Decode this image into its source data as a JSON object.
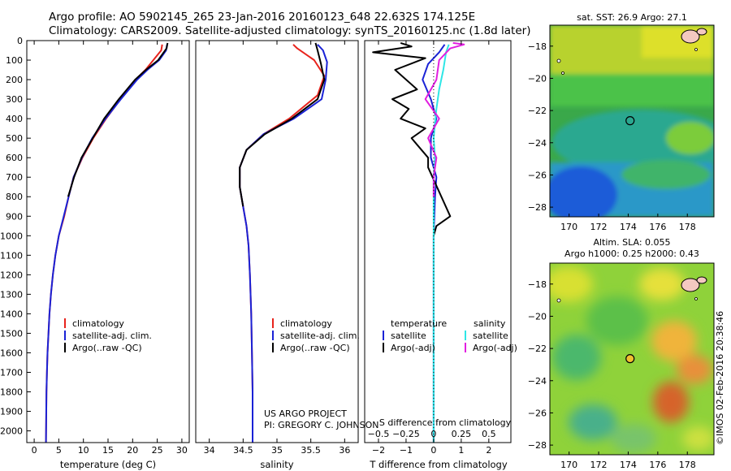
{
  "header": {
    "line1": "Argo profile: AO 5902145_265 23-Jan-2016 20160123_648 22.632S 174.125E",
    "line2": "Climatology: CARS2009. Satellite-adjusted climatology: synTS_20160125.nc (1.8d later)"
  },
  "credit": "©IMOS 02-Feb-2016 20:38:46",
  "project": {
    "line1": "US ARGO PROJECT",
    "line2": "PI: GREGORY C. JOHNSON"
  },
  "colors": {
    "climatology": "#e8231c",
    "satellite": "#1a22d6",
    "argo": "#000000",
    "sat_salinity": "#2ee6e6",
    "argo_salinity": "#e21ee0"
  },
  "chart_data": [
    {
      "type": "line",
      "id": "temperature",
      "xlabel": "temperature (deg C)",
      "xlim": [
        -1.5,
        31.5
      ],
      "xticks": [
        0,
        5,
        10,
        15,
        20,
        25,
        30
      ],
      "ylim": [
        2060,
        0
      ],
      "yticks": [
        0,
        100,
        200,
        300,
        400,
        500,
        600,
        700,
        800,
        900,
        1000,
        1100,
        1200,
        1300,
        1400,
        1500,
        1600,
        1700,
        1800,
        1900,
        2000
      ],
      "legend": [
        "climatology",
        "satellite-adj. clim.",
        "Argo(..raw -QC)"
      ],
      "series": [
        {
          "name": "climatology",
          "x": [
            26.0,
            25.8,
            24.2,
            22.6,
            20.6,
            17.5,
            14.6,
            12.0,
            9.8,
            8.0,
            7.0,
            6.1,
            5.0,
            4.3,
            3.8,
            3.4,
            3.1,
            2.9,
            2.7,
            2.6,
            2.5,
            2.4
          ],
          "y": [
            20,
            50,
            100,
            150,
            200,
            300,
            400,
            500,
            600,
            700,
            800,
            900,
            1000,
            1100,
            1200,
            1300,
            1400,
            1500,
            1600,
            1700,
            1800,
            2060
          ]
        },
        {
          "name": "satellite-adj. clim.",
          "x": [
            27.0,
            26.8,
            25.4,
            23.0,
            20.9,
            17.6,
            14.5,
            11.8,
            9.7,
            8.0,
            7.0,
            6.0,
            5.0,
            4.3,
            3.8,
            3.4,
            3.1,
            2.9,
            2.7,
            2.6,
            2.5,
            2.4
          ],
          "y": [
            20,
            50,
            100,
            150,
            200,
            300,
            400,
            500,
            600,
            700,
            800,
            900,
            1000,
            1100,
            1200,
            1300,
            1400,
            1500,
            1600,
            1700,
            1800,
            2060
          ]
        },
        {
          "name": "Argo(..raw -QC)",
          "x": [
            27.1,
            26.9,
            25.2,
            22.7,
            20.5,
            17.2,
            14.2,
            11.9,
            9.6,
            8.1,
            6.9
          ],
          "y": [
            12,
            40,
            100,
            150,
            200,
            300,
            400,
            500,
            600,
            700,
            800
          ]
        }
      ]
    },
    {
      "type": "line",
      "id": "salinity",
      "xlabel": "salinity",
      "xlim": [
        33.8,
        36.2
      ],
      "xticks": [
        34,
        34.5,
        35,
        35.5,
        36
      ],
      "ylim": [
        2060,
        0
      ],
      "legend": [
        "climatology",
        "satellite-adj. clim.",
        "Argo(..raw -QC)"
      ],
      "series": [
        {
          "name": "climatology",
          "x": [
            35.24,
            35.3,
            35.55,
            35.7,
            35.6,
            35.18,
            34.8,
            34.55,
            34.45,
            34.45,
            34.5,
            34.55,
            34.58,
            34.6,
            34.62,
            34.63,
            34.64,
            34.64
          ],
          "y": [
            20,
            40,
            100,
            180,
            280,
            400,
            480,
            560,
            650,
            750,
            850,
            950,
            1050,
            1200,
            1400,
            1600,
            1800,
            2060
          ]
        },
        {
          "name": "satellite-adj. clim.",
          "x": [
            35.6,
            35.68,
            35.74,
            35.72,
            35.66,
            35.25,
            34.8,
            34.55,
            34.45,
            34.45,
            34.5,
            34.55,
            34.58,
            34.6,
            34.62,
            34.63,
            34.64,
            34.64
          ],
          "y": [
            20,
            50,
            110,
            200,
            300,
            400,
            480,
            560,
            650,
            750,
            850,
            950,
            1050,
            1200,
            1400,
            1600,
            1800,
            2060
          ]
        },
        {
          "name": "Argo(..raw -QC)",
          "x": [
            35.57,
            35.6,
            35.65,
            35.7,
            35.6,
            35.22,
            34.82,
            34.55,
            34.45,
            34.45,
            34.5
          ],
          "y": [
            12,
            50,
            120,
            200,
            300,
            400,
            480,
            560,
            650,
            750,
            850
          ]
        }
      ]
    },
    {
      "type": "line",
      "id": "difference",
      "xlabel_bottom": "T difference from climatology",
      "xlabel_top": "S difference from climatology",
      "xlim": [
        -2.5,
        2.8
      ],
      "xticks": [
        -2,
        -1,
        0,
        1,
        2
      ],
      "xticks_top": [
        -0.5,
        -0.25,
        0,
        0.25,
        0.5
      ],
      "ylim": [
        2060,
        0
      ],
      "legend_temperature": [
        "temperature",
        "satellite",
        "Argo(-adj)"
      ],
      "legend_salinity": [
        "salinity",
        "satellite",
        "Argo(-adj)"
      ],
      "series": [
        {
          "name": "temperature satellite",
          "x": [
            0.4,
            0.2,
            -0.2,
            -0.4,
            -0.1,
            0.1,
            -0.1,
            -0.1,
            0.1,
            0.05,
            0.0,
            0.0,
            0.0,
            0.0
          ],
          "y": [
            20,
            60,
            120,
            200,
            300,
            400,
            500,
            600,
            700,
            800,
            1000,
            1200,
            1600,
            2060
          ]
        },
        {
          "name": "temperature Argo(-adj)",
          "x": [
            -1.2,
            -0.8,
            -2.2,
            -0.3,
            -1.4,
            -0.6,
            -1.5,
            -0.9,
            -1.2,
            -0.3,
            -0.8,
            -0.5,
            -0.2,
            -0.2,
            0.6,
            0.1,
            0.0
          ],
          "y": [
            12,
            30,
            60,
            90,
            150,
            250,
            300,
            350,
            400,
            450,
            500,
            550,
            600,
            650,
            900,
            950,
            1000
          ]
        },
        {
          "name": "salinity satellite",
          "x": [
            0.55,
            0.45,
            0.35,
            0.2,
            0.1,
            0.0,
            0.05,
            0.0,
            0.0,
            0.0,
            0.0,
            0.0,
            0.0
          ],
          "y": [
            20,
            60,
            150,
            250,
            350,
            500,
            600,
            700,
            800,
            1000,
            1400,
            1800,
            2060
          ]
        },
        {
          "name": "salinity Argo(-adj)",
          "x": [
            0.7,
            1.1,
            0.6,
            0.2,
            0.1,
            -0.3,
            0.2,
            -0.2,
            0.1,
            0.0,
            0.0
          ],
          "y": [
            12,
            20,
            40,
            100,
            200,
            300,
            400,
            500,
            600,
            700,
            800
          ]
        }
      ]
    },
    {
      "type": "heatmap",
      "id": "sst_map",
      "title": "sat. SST: 26.9 Argo: 27.1",
      "xticks": [
        170,
        172,
        174,
        176,
        178
      ],
      "yticks": [
        -18,
        -20,
        -22,
        -24,
        -26,
        -28
      ],
      "xlim": [
        168.7,
        179.8
      ],
      "ylim": [
        -28.6,
        -16.7
      ],
      "argo_position": [
        174.125,
        -22.632
      ]
    },
    {
      "type": "heatmap",
      "id": "sla_map",
      "title": "Altim. SLA: 0.055",
      "subtitle": "Argo h1000: 0.25 h2000: 0.43",
      "xticks": [
        170,
        172,
        174,
        176,
        178
      ],
      "yticks": [
        -18,
        -20,
        -22,
        -24,
        -26,
        -28
      ],
      "xlim": [
        168.7,
        179.8
      ],
      "ylim": [
        -28.6,
        -16.7
      ],
      "argo_position": [
        174.125,
        -22.632
      ]
    }
  ]
}
